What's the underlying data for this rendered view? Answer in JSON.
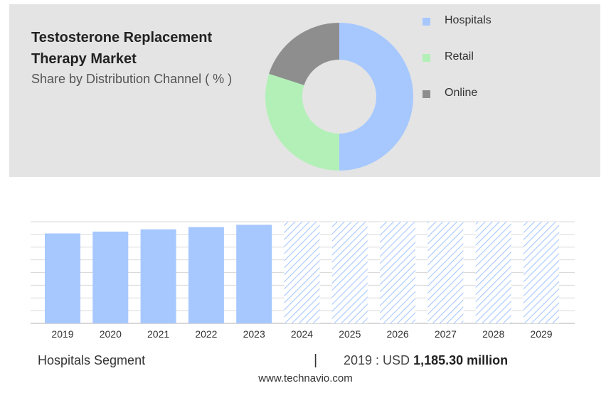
{
  "header": {
    "title": "Testosterone Replacement Therapy Market",
    "subtitle": "Share by Distribution Channel ( % )"
  },
  "colors": {
    "hospitals": "#a6c8ff",
    "retail": "#b3f0b8",
    "online": "#8e8e8e",
    "forecast_hatch": "#a6c8ff"
  },
  "chart_data": [
    {
      "type": "pie",
      "style": "donut",
      "title": "",
      "categories": [
        "Hospitals",
        "Retail",
        "Online"
      ],
      "values": [
        50,
        30,
        20
      ],
      "legend_position": "right"
    },
    {
      "type": "bar",
      "title": "",
      "categories": [
        "2019",
        "2020",
        "2021",
        "2022",
        "2023",
        "2024",
        "2025",
        "2026",
        "2027",
        "2028",
        "2029"
      ],
      "series": [
        {
          "values": [
            1185.3,
            1210,
            1240,
            1270,
            1300,
            1340,
            1340,
            1340,
            1340,
            1340,
            1340
          ],
          "forecast_from_index": 5
        }
      ],
      "ylim": [
        0,
        1340
      ],
      "grid": true,
      "value_labels": false,
      "y_axis_labels": false
    }
  ],
  "summary": {
    "segment": "Hospitals Segment",
    "separator": "|",
    "prefix": "2019 : USD",
    "value": "1,185.30 million"
  },
  "footer": {
    "source": "www.technavio.com"
  }
}
